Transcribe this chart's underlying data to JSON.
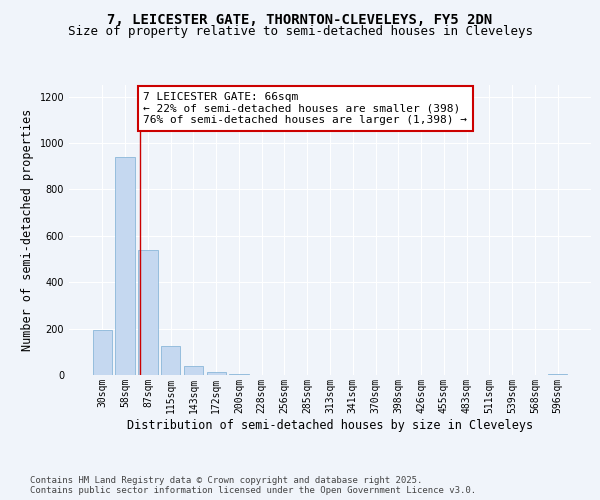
{
  "title_line1": "7, LEICESTER GATE, THORNTON-CLEVELEYS, FY5 2DN",
  "title_line2": "Size of property relative to semi-detached houses in Cleveleys",
  "xlabel": "Distribution of semi-detached houses by size in Cleveleys",
  "ylabel": "Number of semi-detached properties",
  "categories": [
    "30sqm",
    "58sqm",
    "87sqm",
    "115sqm",
    "143sqm",
    "172sqm",
    "200sqm",
    "228sqm",
    "256sqm",
    "285sqm",
    "313sqm",
    "341sqm",
    "370sqm",
    "398sqm",
    "426sqm",
    "455sqm",
    "483sqm",
    "511sqm",
    "539sqm",
    "568sqm",
    "596sqm"
  ],
  "values": [
    193,
    940,
    540,
    127,
    38,
    13,
    5,
    0,
    0,
    0,
    0,
    0,
    0,
    0,
    0,
    0,
    0,
    0,
    0,
    0,
    5
  ],
  "bar_color": "#c5d8f0",
  "bar_edge_color": "#7aaed4",
  "vline_x": 1.65,
  "vline_color": "#cc0000",
  "annotation_text": "7 LEICESTER GATE: 66sqm\n← 22% of semi-detached houses are smaller (398)\n76% of semi-detached houses are larger (1,398) →",
  "annotation_box_facecolor": "#ffffff",
  "annotation_box_edgecolor": "#cc0000",
  "ylim": [
    0,
    1250
  ],
  "yticks": [
    0,
    200,
    400,
    600,
    800,
    1000,
    1200
  ],
  "bg_color": "#f0f4fa",
  "grid_color": "#ffffff",
  "title_fontsize": 10,
  "subtitle_fontsize": 9,
  "axis_label_fontsize": 8.5,
  "tick_fontsize": 7,
  "annotation_fontsize": 8,
  "footer_fontsize": 6.5,
  "footer_text": "Contains HM Land Registry data © Crown copyright and database right 2025.\nContains public sector information licensed under the Open Government Licence v3.0."
}
